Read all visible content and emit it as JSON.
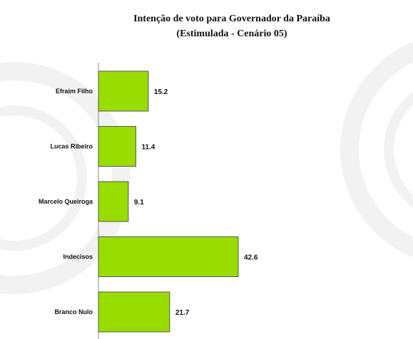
{
  "chart_data": {
    "type": "bar",
    "orientation": "horizontal",
    "title": "Intenção de voto para Governador da Paraíba",
    "subtitle": "(Estimulada - Cenário 05)",
    "categories": [
      "Efraim Filho",
      "Lucas Ribeiro",
      "Marcelo Queiroga",
      "Indecisos",
      "Branco Nulo"
    ],
    "values": [
      15.2,
      11.4,
      9.1,
      42.6,
      21.7
    ],
    "value_labels": [
      "15.2",
      "11.4",
      "9.1",
      "42.6",
      "21.7"
    ],
    "xlim": [
      0,
      100
    ],
    "grid": false,
    "legend": "none",
    "bar_color": "#99dd00",
    "bar_border_color": "#555555"
  }
}
